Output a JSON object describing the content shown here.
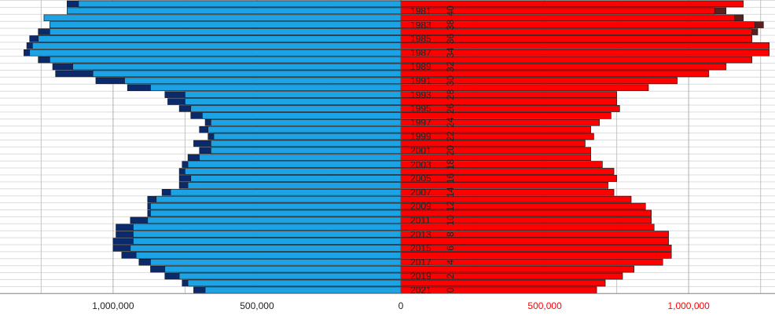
{
  "chart_data": {
    "type": "pyramid",
    "categories": [
      null,
      "1981",
      null,
      "1983",
      null,
      "1985",
      null,
      "1987",
      null,
      "1989",
      null,
      "1991",
      null,
      "1993",
      null,
      "1995",
      null,
      "1997",
      null,
      "1999",
      null,
      "2001",
      null,
      "2003",
      null,
      "2005",
      null,
      "2007",
      null,
      "2009",
      null,
      "2011",
      null,
      "2013",
      null,
      "2015",
      null,
      "2017",
      null,
      "2019",
      null,
      "2021"
    ],
    "age_labels": [
      null,
      40,
      null,
      38,
      null,
      36,
      null,
      34,
      null,
      32,
      null,
      30,
      null,
      28,
      null,
      26,
      null,
      24,
      null,
      22,
      null,
      20,
      null,
      18,
      null,
      16,
      null,
      14,
      null,
      12,
      null,
      10,
      null,
      8,
      null,
      6,
      null,
      4,
      null,
      2,
      null,
      0
    ],
    "series": [
      {
        "side": "left",
        "color": "#0b2a6b",
        "values": [
          1160000,
          1160000,
          1240000,
          1220000,
          1260000,
          1290000,
          1300000,
          1310000,
          1260000,
          1210000,
          1200000,
          1060000,
          950000,
          820000,
          810000,
          770000,
          730000,
          680000,
          700000,
          670000,
          720000,
          700000,
          740000,
          760000,
          770000,
          770000,
          770000,
          830000,
          880000,
          880000,
          880000,
          940000,
          990000,
          990000,
          1000000,
          1000000,
          970000,
          910000,
          870000,
          820000,
          760000,
          720000
        ]
      },
      {
        "side": "left",
        "color": "#1ba3e6",
        "values": [
          1120000,
          1160000,
          1240000,
          1220000,
          1220000,
          1260000,
          1280000,
          1290000,
          1220000,
          1140000,
          1070000,
          960000,
          870000,
          750000,
          750000,
          730000,
          690000,
          660000,
          670000,
          650000,
          660000,
          660000,
          700000,
          740000,
          750000,
          730000,
          740000,
          800000,
          850000,
          870000,
          870000,
          880000,
          930000,
          930000,
          930000,
          940000,
          920000,
          870000,
          820000,
          770000,
          740000,
          680000
        ]
      },
      {
        "side": "right",
        "color": "#5a1f1f",
        "values": [
          1190000,
          1130000,
          1190000,
          1260000,
          1240000,
          1220000,
          1280000,
          1280000,
          1220000,
          1130000,
          1070000,
          960000,
          860000,
          750000,
          750000,
          760000,
          730000,
          690000,
          660000,
          670000,
          640000,
          660000,
          660000,
          700000,
          740000,
          750000,
          720000,
          740000,
          800000,
          850000,
          870000,
          870000,
          880000,
          930000,
          930000,
          940000,
          940000,
          910000,
          810000,
          770000,
          710000,
          680000
        ]
      },
      {
        "side": "right",
        "color": "#ff0000",
        "values": [
          1190000,
          1090000,
          1160000,
          1230000,
          1220000,
          1220000,
          1280000,
          1280000,
          1220000,
          1130000,
          1070000,
          960000,
          860000,
          750000,
          750000,
          760000,
          730000,
          690000,
          660000,
          670000,
          640000,
          660000,
          660000,
          700000,
          740000,
          750000,
          720000,
          740000,
          800000,
          850000,
          870000,
          870000,
          880000,
          930000,
          930000,
          940000,
          940000,
          910000,
          810000,
          770000,
          710000,
          680000
        ]
      }
    ],
    "xlim": [
      -1393000,
      1300000
    ],
    "xticks": [
      {
        "value": -1000000,
        "label": "1,000,000"
      },
      {
        "value": -500000,
        "label": "500,000"
      },
      0,
      {
        "value": 500000,
        "label": "500,000"
      },
      {
        "value": 1000000,
        "label": "1,000,000"
      }
    ],
    "x_minor_grid": [
      -1250000,
      -750000,
      -250000,
      250000,
      750000,
      1250000
    ],
    "grid": true
  }
}
